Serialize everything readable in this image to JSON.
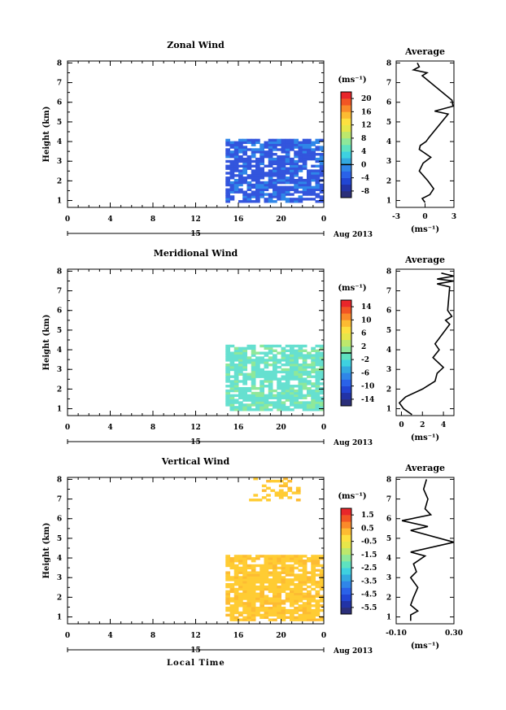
{
  "figure": {
    "xlabel": "Local Time"
  },
  "colors": {
    "scale": [
      "#2b2f7a",
      "#2233a6",
      "#2146d4",
      "#2a62e8",
      "#2f86e8",
      "#33aae0",
      "#3ed1e0",
      "#5ee2c0",
      "#8ee89a",
      "#bde86c",
      "#e6e64a",
      "#fde040",
      "#fdbb32",
      "#fa8a2a",
      "#f25524",
      "#e8262a"
    ],
    "zonal_cell": "#3355dd",
    "meridional_cell": "#66e0d0",
    "vertical_cell": "#ffcc33"
  },
  "chart_data": [
    {
      "type": "heatmap",
      "title": "Zonal Wind",
      "ylabel": "Height (km)",
      "x_ticks": [
        "0",
        "4",
        "8",
        "12",
        "16",
        "20",
        "0"
      ],
      "y_ticks": [
        "1",
        "2",
        "3",
        "4",
        "5",
        "6",
        "7",
        "8"
      ],
      "xlim": [
        0,
        24
      ],
      "ylim": [
        0.65,
        8.1
      ],
      "date_day": "15",
      "date_month": "Aug 2013",
      "colorbar": {
        "unit": "(ms⁻¹)",
        "ticks": [
          "20",
          "16",
          "12",
          "8",
          "4",
          "0",
          "-4",
          "-8"
        ],
        "range": [
          -10,
          22
        ],
        "zero_line": 0
      },
      "data_extent": {
        "time": [
          14.8,
          24
        ],
        "height": [
          0.9,
          4.1
        ]
      },
      "average": {
        "title": "Average",
        "xlabel": "(ms⁻¹)",
        "x_ticks": [
          "-3",
          "0",
          "3"
        ],
        "xlim": [
          -3,
          3
        ],
        "profile": [
          [
            0.0,
            0.9
          ],
          [
            -0.3,
            1.1
          ],
          [
            0.5,
            1.3
          ],
          [
            0.9,
            1.6
          ],
          [
            0.3,
            2.0
          ],
          [
            -0.6,
            2.5
          ],
          [
            -0.2,
            2.9
          ],
          [
            0.6,
            3.2
          ],
          [
            -0.6,
            3.6
          ],
          [
            -0.5,
            3.8
          ],
          [
            0.1,
            4.0
          ],
          [
            0.4,
            4.2
          ],
          [
            2.4,
            5.4
          ],
          [
            1.0,
            5.55
          ],
          [
            2.9,
            5.8
          ],
          [
            2.8,
            6.1
          ],
          [
            -0.3,
            7.35
          ],
          [
            0.2,
            7.5
          ],
          [
            -1.2,
            7.65
          ],
          [
            -0.6,
            7.8
          ],
          [
            -0.8,
            8.0
          ]
        ]
      }
    },
    {
      "type": "heatmap",
      "title": "Meridional Wind",
      "ylabel": "Height (km)",
      "x_ticks": [
        "0",
        "4",
        "8",
        "12",
        "16",
        "20",
        "0"
      ],
      "y_ticks": [
        "1",
        "2",
        "3",
        "4",
        "5",
        "6",
        "7",
        "8"
      ],
      "xlim": [
        0,
        24
      ],
      "ylim": [
        0.65,
        8.1
      ],
      "date_day": "15",
      "date_month": "Aug 2013",
      "colorbar": {
        "unit": "(ms⁻¹)",
        "ticks": [
          "14",
          "10",
          "6",
          "2",
          "-2",
          "-6",
          "-10",
          "-14"
        ],
        "range": [
          -16,
          16
        ],
        "zero_line": 0
      },
      "data_extent": {
        "time": [
          14.8,
          24
        ],
        "height": [
          0.9,
          4.2
        ]
      },
      "average": {
        "title": "Average",
        "xlabel": "(ms⁻¹)",
        "x_ticks": [
          "0",
          "2",
          "4"
        ],
        "xlim": [
          -0.5,
          5
        ],
        "profile": [
          [
            1.0,
            0.7
          ],
          [
            0.2,
            1.0
          ],
          [
            -0.2,
            1.3
          ],
          [
            0.4,
            1.6
          ],
          [
            2.0,
            2.0
          ],
          [
            3.2,
            2.4
          ],
          [
            3.4,
            2.8
          ],
          [
            4.0,
            3.1
          ],
          [
            3.0,
            3.6
          ],
          [
            3.6,
            4.0
          ],
          [
            3.2,
            4.3
          ],
          [
            4.6,
            5.3
          ],
          [
            4.2,
            5.5
          ],
          [
            4.8,
            5.7
          ],
          [
            4.4,
            6.0
          ],
          [
            4.6,
            7.2
          ],
          [
            3.4,
            7.35
          ],
          [
            5.0,
            7.5
          ],
          [
            3.4,
            7.6
          ],
          [
            5.0,
            7.75
          ],
          [
            3.8,
            7.9
          ]
        ]
      }
    },
    {
      "type": "heatmap",
      "title": "Vertical Wind",
      "ylabel": "Height (km)",
      "x_ticks": [
        "0",
        "4",
        "8",
        "12",
        "16",
        "20",
        "0"
      ],
      "y_ticks": [
        "1",
        "2",
        "3",
        "4",
        "5",
        "6",
        "7",
        "8"
      ],
      "xlim": [
        0,
        24
      ],
      "ylim": [
        0.65,
        8.1
      ],
      "date_day": "15",
      "date_month": "Aug 2013",
      "colorbar": {
        "unit": "(ms⁻¹)",
        "ticks": [
          "1.5",
          "0.5",
          "-0.5",
          "-1.5",
          "-2.5",
          "-3.5",
          "-4.5",
          "-5.5"
        ],
        "range": [
          -6,
          2
        ],
        "zero_line": null
      },
      "data_extent": {
        "time": [
          14.8,
          24
        ],
        "height": [
          0.8,
          4.1
        ]
      },
      "data_extent_upper": {
        "time": [
          17.0,
          21.5
        ],
        "height": [
          6.9,
          8.0
        ]
      },
      "average": {
        "title": "Average",
        "xlabel": "(ms⁻¹)",
        "x_ticks": [
          "-0.10",
          "0.30"
        ],
        "xlim": [
          -0.1,
          0.3
        ],
        "profile": [
          [
            0.0,
            0.8
          ],
          [
            0.0,
            1.1
          ],
          [
            0.05,
            1.3
          ],
          [
            0.0,
            1.6
          ],
          [
            0.02,
            2.0
          ],
          [
            0.05,
            2.5
          ],
          [
            0.0,
            3.0
          ],
          [
            0.04,
            3.3
          ],
          [
            0.02,
            3.7
          ],
          [
            0.1,
            4.1
          ],
          [
            0.0,
            4.3
          ],
          [
            0.3,
            4.8
          ],
          [
            0.0,
            5.4
          ],
          [
            0.12,
            5.6
          ],
          [
            -0.06,
            5.9
          ],
          [
            0.14,
            6.2
          ],
          [
            0.1,
            6.5
          ],
          [
            0.12,
            7.0
          ],
          [
            0.09,
            7.5
          ],
          [
            0.11,
            8.0
          ]
        ]
      }
    }
  ]
}
